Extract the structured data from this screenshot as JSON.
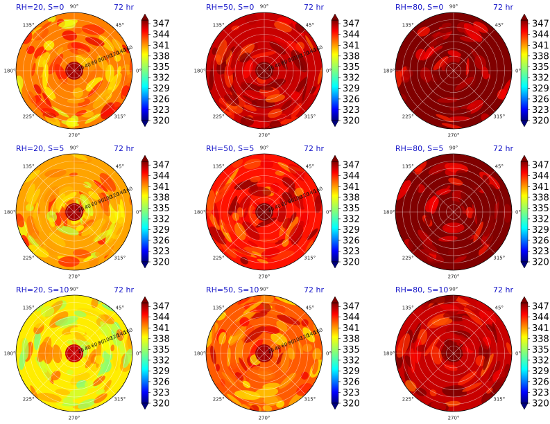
{
  "chart_data": {
    "type": "polar-contourf",
    "colormap": "jet",
    "colorbar": {
      "ticks": [
        "347",
        "344",
        "341",
        "338",
        "335",
        "332",
        "329",
        "326",
        "323",
        "320"
      ],
      "min": 320,
      "max": 348
    },
    "angle_labels": [
      "90°",
      "45°",
      "0°",
      "315°",
      "270°",
      "225°",
      "180°",
      "135°"
    ],
    "radial_ticks": [
      "20",
      "40",
      "60",
      "80",
      "100",
      "120",
      "140",
      "160"
    ],
    "radial_max": 160,
    "panels": [
      {
        "title_left": "RH=20, S=0",
        "title_right": "72 hr",
        "rh": 20,
        "s": 0,
        "core_value": 347,
        "ambient_value": 341,
        "shows_radial_labels": true
      },
      {
        "title_left": "RH=50, S=0",
        "title_right": "72 hr",
        "rh": 50,
        "s": 0,
        "core_value": 348,
        "ambient_value": 346,
        "shows_radial_labels": true
      },
      {
        "title_left": "RH=80, S=0",
        "title_right": "72 hr",
        "rh": 80,
        "s": 0,
        "core_value": 348,
        "ambient_value": 348,
        "shows_radial_labels": false
      },
      {
        "title_left": "RH=20, S=5",
        "title_right": "72 hr",
        "rh": 20,
        "s": 5,
        "core_value": 347,
        "ambient_value": 340,
        "shows_radial_labels": true
      },
      {
        "title_left": "RH=50, S=5",
        "title_right": "72 hr",
        "rh": 50,
        "s": 5,
        "core_value": 348,
        "ambient_value": 344,
        "shows_radial_labels": true
      },
      {
        "title_left": "RH=80, S=5",
        "title_right": "72 hr",
        "rh": 80,
        "s": 5,
        "core_value": 348,
        "ambient_value": 348,
        "shows_radial_labels": false
      },
      {
        "title_left": "RH=20, S=10",
        "title_right": "72 hr",
        "rh": 20,
        "s": 10,
        "core_value": 346,
        "ambient_value": 338,
        "shows_radial_labels": true
      },
      {
        "title_left": "RH=50, S=10",
        "title_right": "72 hr",
        "rh": 50,
        "s": 10,
        "core_value": 347,
        "ambient_value": 342,
        "shows_radial_labels": true
      },
      {
        "title_left": "RH=80, S=10",
        "title_right": "72 hr",
        "rh": 80,
        "s": 10,
        "core_value": 348,
        "ambient_value": 346,
        "shows_radial_labels": false
      }
    ]
  }
}
